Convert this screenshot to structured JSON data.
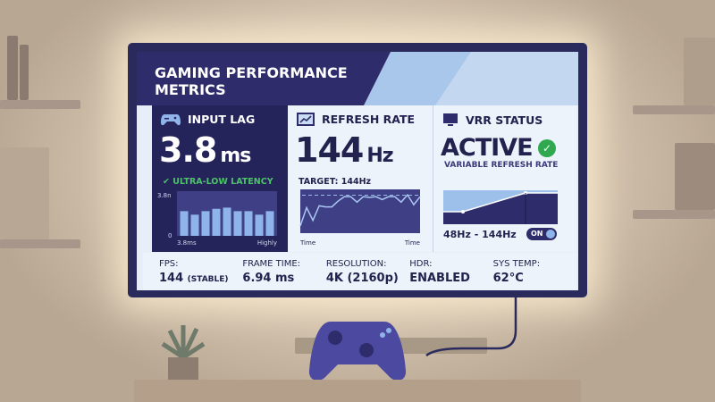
{
  "title": "GAMING PERFORMANCE METRICS",
  "input_lag": {
    "label": "INPUT LAG",
    "value": "3.8",
    "unit": "ms",
    "status": "ULTRA-LOW LATENCY",
    "icon": "gamepad-icon",
    "chart": {
      "type": "bar",
      "y_top_label": "3.8n",
      "y_bottom_label": "0",
      "x_left_label": "3.8ms",
      "x_right_label": "Highly",
      "ylim": [
        0,
        3.8
      ],
      "values": [
        2.1,
        1.8,
        2.1,
        2.3,
        2.4,
        2.1,
        2.1,
        1.8,
        2.1
      ]
    }
  },
  "refresh_rate": {
    "label": "REFRESH RATE",
    "value": "144",
    "unit": "Hz",
    "target": "TARGET: 144Hz",
    "icon": "line-chart-icon",
    "chart": {
      "type": "line",
      "x_left_label": "Time",
      "x_right_label": "Time",
      "target": 144,
      "values": [
        60,
        110,
        75,
        115,
        112,
        112,
        128,
        140,
        140,
        125,
        140,
        138,
        140,
        132,
        140,
        140,
        125,
        145,
        118,
        140
      ]
    }
  },
  "vrr": {
    "label": "VRR STATUS",
    "status": "ACTIVE",
    "subtitle": "VARIABLE REFRESH RATE",
    "range": "48Hz - 144Hz",
    "toggle": "ON",
    "icon": "monitor-icon",
    "check_color": "#2fa84f"
  },
  "stats": [
    {
      "label": "FPS:",
      "value": "144",
      "suffix": "(STABLE)"
    },
    {
      "label": "FRAME TIME:",
      "value": "6.94 ms"
    },
    {
      "label": "RESOLUTION:",
      "value": "4K (2160p)"
    },
    {
      "label": "HDR:",
      "value": "ENABLED"
    },
    {
      "label": "SYS TEMP:",
      "value": "62°C"
    }
  ],
  "colors": {
    "navy": "#24235a",
    "accent_blue": "#8fb4ea",
    "green": "#3bb35a"
  }
}
